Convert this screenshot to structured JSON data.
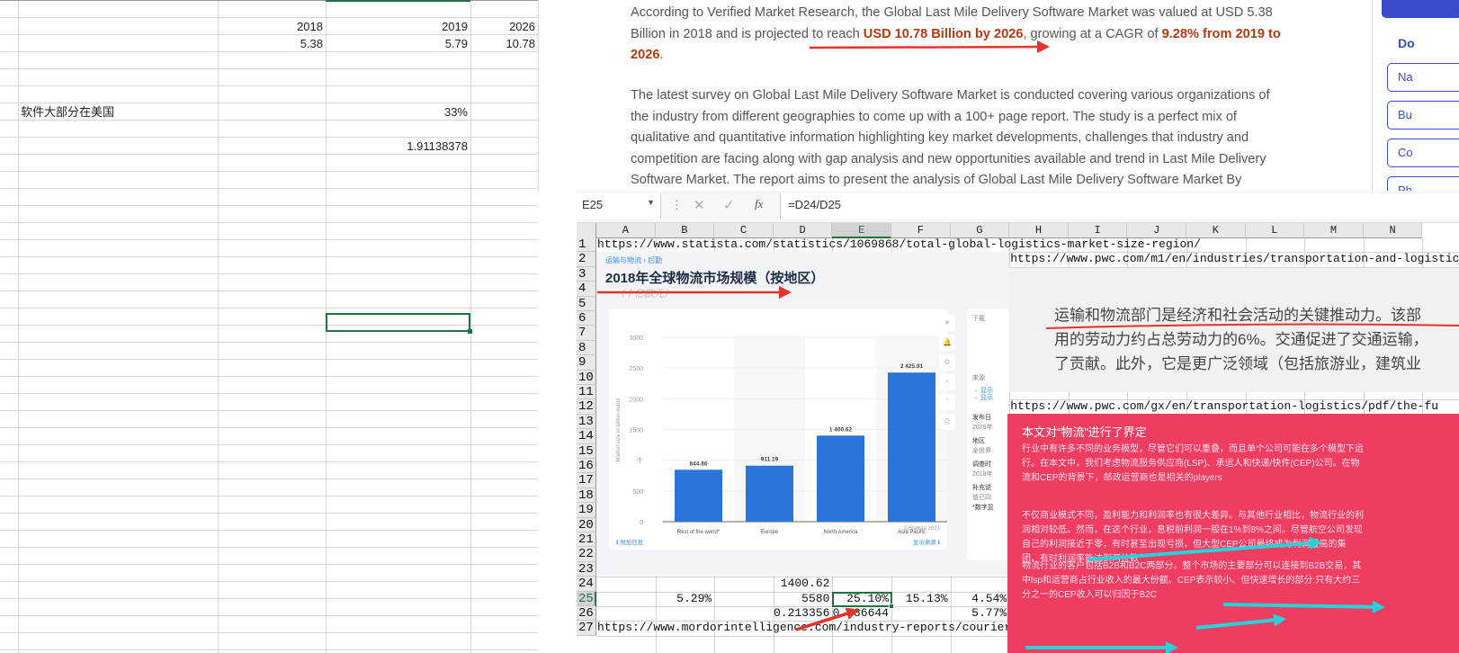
{
  "left_sheet": {
    "rows": [
      [
        "",
        "",
        "",
        ""
      ],
      [
        "",
        "2018",
        "2019",
        "2026"
      ],
      [
        "",
        "5.38",
        "5.79",
        "10.78"
      ],
      [
        "",
        "",
        "",
        ""
      ],
      [
        "",
        "",
        "",
        ""
      ],
      [
        "",
        "",
        "",
        ""
      ],
      [
        "软件大部分在美国",
        "",
        "33%",
        ""
      ],
      [
        "",
        "",
        "",
        ""
      ],
      [
        "",
        "",
        "1.91138378",
        ""
      ]
    ]
  },
  "article": {
    "lines": [
      [
        {
          "t": "According to Verified Market Research, the Global Last Mile Delivery Software Market was valued at USD 5.38"
        }
      ],
      [
        {
          "t": "Billion in 2018 and is projected to reach "
        },
        {
          "t": "USD 10.78 Billion by 2026",
          "b": true
        },
        {
          "t": ", growing at a CAGR of "
        },
        {
          "t": "9.28% from 2019 to",
          "b": true
        }
      ],
      [
        {
          "t": "2026",
          "b": true
        },
        {
          "t": "."
        }
      ],
      [
        {
          "t": "The latest survey on Global Last Mile Delivery Software Market is conducted covering various organizations of"
        }
      ],
      [
        {
          "t": "the industry from different geographies to come up with a 100+ page report. The study is a perfect mix of"
        }
      ],
      [
        {
          "t": "qualitative and quantitative information highlighting key market developments, challenges that industry and"
        }
      ],
      [
        {
          "t": "competition are facing along with gap analysis and new opportunities available and trend in Last Mile Delivery"
        }
      ],
      [
        {
          "t": "Software Market.  The report aims to present the analysis of Global Last Mile Delivery Software Market By"
        }
      ]
    ],
    "highlight_color": "#b33a12"
  },
  "sidebar": {
    "heading": "Do",
    "buttons": [
      "Na",
      "Bu",
      "Co",
      "Ph"
    ],
    "accent": "#3a4bc8"
  },
  "excel": {
    "name_box": "E25",
    "formula": "=D24/D25",
    "fx": "fx",
    "columns": [
      "A",
      "B",
      "C",
      "D",
      "E",
      "F",
      "G",
      "H",
      "I",
      "J",
      "K",
      "L",
      "M",
      "N"
    ],
    "rows": [
      "1",
      "2",
      "3",
      "4",
      "5",
      "6",
      "7",
      "8",
      "9",
      "10",
      "11",
      "12",
      "13",
      "14",
      "15",
      "16",
      "17",
      "18",
      "19",
      "20",
      "21",
      "22",
      "23",
      "24",
      "25",
      "26",
      "27"
    ],
    "selected_cell": "E25",
    "cells": {
      "A1": "https://www.statista.com/statistics/1069868/total-global-logistics-market-size-region/",
      "H2": "https://www.pwc.com/m1/en/industries/transportation-and-logistics",
      "H12": "https://www.pwc.com/gx/en/transportation-logistics/pdf/the-fu",
      "D24": "1400.62",
      "B25": "5.29%",
      "D25": "5580",
      "E25": "25.10%",
      "F25": "15.13%",
      "G25": "4.54%",
      "D26": "0.213356",
      "E26": "0.786644",
      "G26": "5.77%",
      "A27": "https://www.mordorintelligence.com/industry-reports/courier-express"
    }
  },
  "statista": {
    "breadcrumb": "运输与物流 › 后勤",
    "title": "2018年全球物流市场规模（按地区）",
    "subtitle": "（十亿欧元）",
    "credit": "©Statista 2021",
    "more_info": "附加信息",
    "show_source": "显示来源",
    "panel": [
      "下载",
      "来源",
      "→ 显示",
      "→ 显示",
      "发布日",
      "2019年",
      "地区",
      "全世界",
      "调查时",
      "2018年",
      "补充说",
      "值已四",
      "*数字显"
    ],
    "chart_data": {
      "type": "bar",
      "categories": [
        "Rest of the world*",
        "Europe",
        "North America",
        "Asia Pacific"
      ],
      "values": [
        844.86,
        911.19,
        1400.62,
        2425.91
      ],
      "labels": [
        "844.86",
        "911.19",
        "1 400.62",
        "2 425.91"
      ],
      "ylabel": "Market size in billion euros",
      "yticks": [
        "0",
        "500",
        "千",
        "1500",
        "2000",
        "2500",
        "3000"
      ],
      "ylim": [
        0,
        3000
      ],
      "grid": true,
      "bar_color": "#2874d8"
    }
  },
  "graybox": {
    "lines": [
      "运输和物流部门是经济和社会活动的关键推动力。该部",
      "用的劳动力约占总劳动力的6%。交通促进了交通运输，",
      "了贡献。此外，它是更广泛领域（包括旅游业，建筑业"
    ]
  },
  "redbox": {
    "title": "本文对“物流”进行了界定",
    "paragraphs": [
      "行业中有许多不同的业务模型，尽管它们可以重叠，而且单个公司可能在多个模型下运行。在本文中，我们考虑物流服务供应商(LSP)、承运人和快递/快件(CEP)公司。在物流和CEP的背景下，邮政运营商也是相关的players",
      "不仅商业模式不同，盈利能力和利润率也有很大差异。与其他行业相比，物流行业的利润相对较低。然而，在这个行业，息税前利润一般在1%到8%之间。尽管航空公司发现自己的利润接近于零，有时甚至出现亏损，但大型CEP公司最终成为利润最高的集团，有时利润率能达到两位数",
      "物流行业的客户包括B2B和B2C两部分。整个市场的主要部分可以连接到B2B交易，其中lsp和运营商占行业收入的最大份额。CEP表示较小、但快速增长的部分:只有大约三分之一的CEP收入可以归因于B2C"
    ],
    "color": "#ee3d60"
  },
  "annotation_colors": {
    "red_arrow": "#e8322e",
    "cyan_arrow": "#27d3d8"
  }
}
